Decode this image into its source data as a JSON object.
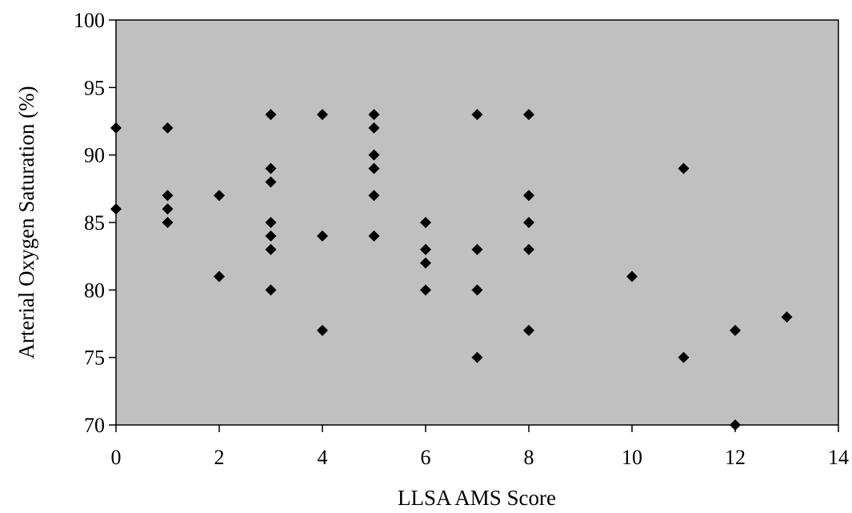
{
  "chart_data": {
    "type": "scatter",
    "title": "",
    "xlabel": "LLSA AMS Score",
    "ylabel": "Arterial Oxygen Saturation (%)",
    "xlim": [
      0,
      14
    ],
    "ylim": [
      70,
      100
    ],
    "xticks": [
      0,
      2,
      4,
      6,
      8,
      10,
      12,
      14
    ],
    "yticks": [
      70,
      75,
      80,
      85,
      90,
      95,
      100
    ],
    "grid": false,
    "legend": "none",
    "plot_background": "#c0c0c0",
    "marker_color": "#000000",
    "marker": "diamond",
    "series": [
      {
        "points": [
          [
            0,
            92
          ],
          [
            0,
            86
          ],
          [
            1,
            92
          ],
          [
            1,
            87
          ],
          [
            1,
            86
          ],
          [
            1,
            85
          ],
          [
            2,
            87
          ],
          [
            2,
            81
          ],
          [
            3,
            93
          ],
          [
            3,
            89
          ],
          [
            3,
            88
          ],
          [
            3,
            85
          ],
          [
            3,
            84
          ],
          [
            3,
            83
          ],
          [
            3,
            80
          ],
          [
            4,
            93
          ],
          [
            4,
            84
          ],
          [
            4,
            77
          ],
          [
            5,
            93
          ],
          [
            5,
            92
          ],
          [
            5,
            90
          ],
          [
            5,
            89
          ],
          [
            5,
            87
          ],
          [
            5,
            84
          ],
          [
            6,
            85
          ],
          [
            6,
            83
          ],
          [
            6,
            82
          ],
          [
            6,
            80
          ],
          [
            7,
            93
          ],
          [
            7,
            83
          ],
          [
            7,
            80
          ],
          [
            7,
            75
          ],
          [
            8,
            93
          ],
          [
            8,
            87
          ],
          [
            8,
            85
          ],
          [
            8,
            83
          ],
          [
            8,
            77
          ],
          [
            10,
            81
          ],
          [
            11,
            89
          ],
          [
            11,
            75
          ],
          [
            12,
            77
          ],
          [
            12,
            70
          ],
          [
            13,
            78
          ]
        ]
      }
    ]
  }
}
